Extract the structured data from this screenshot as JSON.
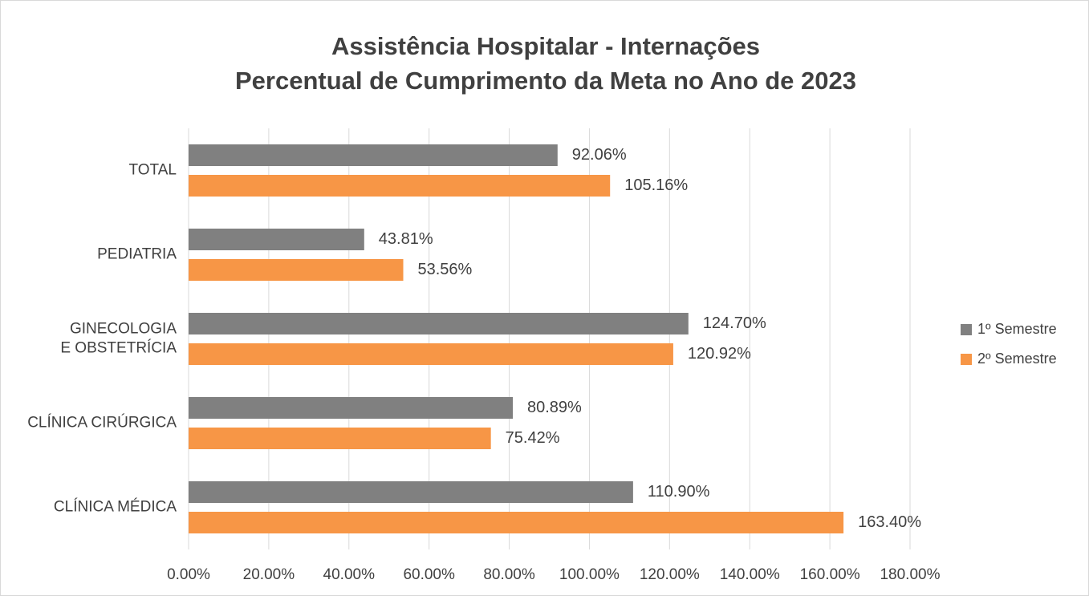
{
  "chart_data": {
    "type": "barh",
    "title": "Assistência Hospitalar - Internações",
    "subtitle": "Percentual de Cumprimento da Meta no Ano de 2023",
    "categories": [
      "TOTAL",
      "PEDIATRIA",
      "GINECOLOGIA E OBSTETRÍCIA",
      "CLÍNICA CIRÚRGICA",
      "CLÍNICA MÉDICA"
    ],
    "series": [
      {
        "name": "1º Semestre",
        "color": "#808080",
        "values": [
          92.06,
          43.81,
          124.7,
          80.89,
          110.9
        ],
        "value_labels": [
          "92.06%",
          "43.81%",
          "124.70%",
          "80.89%",
          "110.90%"
        ]
      },
      {
        "name": "2º Semestre",
        "color": "#f79646",
        "values": [
          105.16,
          53.56,
          120.92,
          75.42,
          163.4
        ],
        "value_labels": [
          "105.16%",
          "53.56%",
          "120.92%",
          "75.42%",
          "163.40%"
        ]
      }
    ],
    "xlim": [
      0,
      180
    ],
    "xticks": [
      {
        "value": 0,
        "label": "0.00%"
      },
      {
        "value": 20,
        "label": "20.00%"
      },
      {
        "value": 40,
        "label": "40.00%"
      },
      {
        "value": 60,
        "label": "60.00%"
      },
      {
        "value": 80,
        "label": "80.00%"
      },
      {
        "value": 100,
        "label": "100.00%"
      },
      {
        "value": 120,
        "label": "120.00%"
      },
      {
        "value": 140,
        "label": "140.00%"
      },
      {
        "value": 160,
        "label": "160.00%"
      },
      {
        "value": 180,
        "label": "180.00%"
      }
    ],
    "grid": true,
    "legend": "right"
  }
}
